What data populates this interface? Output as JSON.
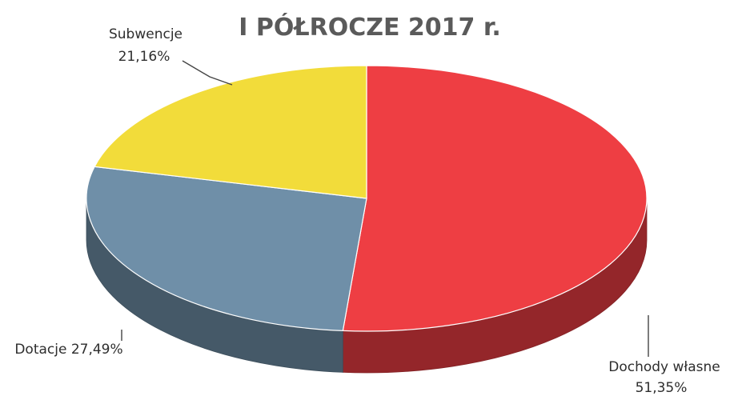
{
  "chart_data": {
    "type": "pie",
    "title": "I PÓŁROCZE 2017 r.",
    "slices": [
      {
        "name": "Dochody własne",
        "value": 51.35,
        "label": "51,35%",
        "color": "#ee3e43"
      },
      {
        "name": "Dotacje",
        "value": 27.49,
        "label": "27,49%",
        "color": "#6f8fa8"
      },
      {
        "name": "Subwencje",
        "value": 21.16,
        "label": "21,16%",
        "color": "#f2dc3a"
      }
    ],
    "labels": {
      "subwencje_name": "Subwencje",
      "subwencje_value": "21,16%",
      "dotacje": "Dotacje 27,49%",
      "dochody_name": "Dochody własne",
      "dochody_value": "51,35%"
    }
  }
}
